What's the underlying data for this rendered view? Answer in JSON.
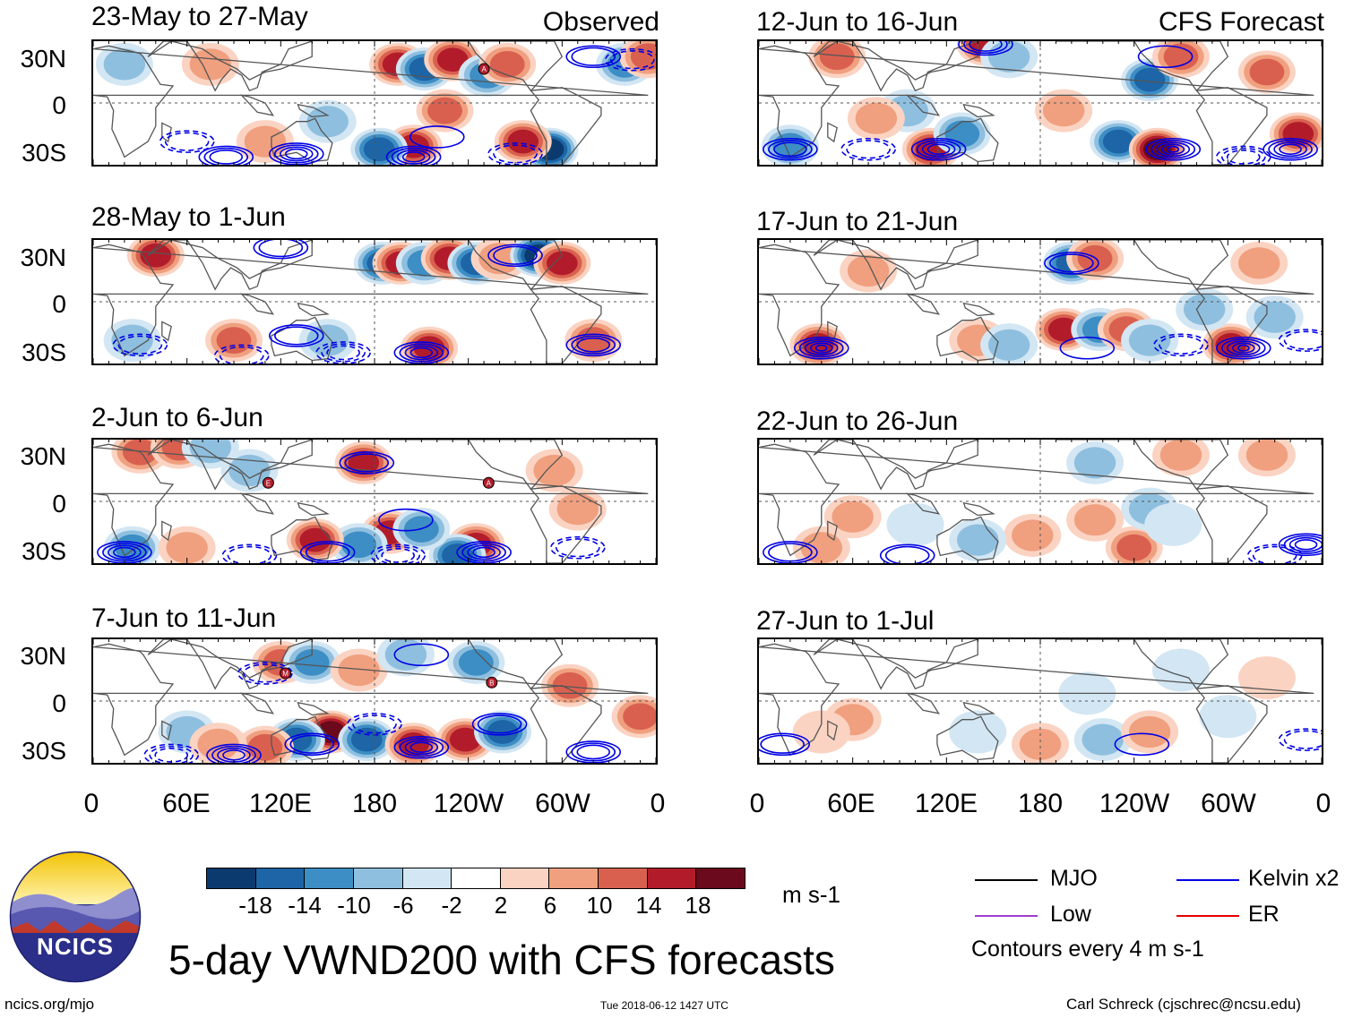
{
  "header": {
    "observed_label": "Observed",
    "forecast_label": "CFS Forecast"
  },
  "panels_left": [
    {
      "title": "23-May to 27-May"
    },
    {
      "title": "28-May to 1-Jun"
    },
    {
      "title": "2-Jun to 6-Jun"
    },
    {
      "title": "7-Jun to 11-Jun"
    }
  ],
  "panels_right": [
    {
      "title": "12-Jun to 16-Jun"
    },
    {
      "title": "17-Jun to 21-Jun"
    },
    {
      "title": "22-Jun to 26-Jun"
    },
    {
      "title": "27-Jun to 1-Jul"
    }
  ],
  "axes": {
    "lat_labels": [
      "30N",
      "0",
      "30S"
    ],
    "lon_labels": [
      "0",
      "60E",
      "120E",
      "180",
      "120W",
      "60W",
      "0"
    ]
  },
  "colorbar": {
    "ticks": [
      "-18",
      "-14",
      "-10",
      "-6",
      "-2",
      "2",
      "6",
      "10",
      "14",
      "18"
    ],
    "unit": "m s-1",
    "colors": [
      "#0b3b6e",
      "#1d65a6",
      "#3d8ec4",
      "#8fbfdf",
      "#d3e6f3",
      "#ffffff",
      "#fbd3c2",
      "#f0a07f",
      "#d9604f",
      "#b21c2a",
      "#6a0a1c"
    ]
  },
  "legend": {
    "items": [
      {
        "label": "MJO",
        "color": "#000000"
      },
      {
        "label": "Kelvin x2",
        "color": "#0000e6"
      },
      {
        "label": "Low",
        "color": "#a03cd0"
      },
      {
        "label": "ER",
        "color": "#e60000"
      }
    ],
    "contour_note": "Contours every 4 m s-1"
  },
  "footer": {
    "main_title": "5-day VWND200 with CFS forecasts",
    "logo_text": "NCICS",
    "site": "ncics.org/mjo",
    "timestamp": "Tue 2018-06-12 1427 UTC",
    "author": "Carl Schreck (cjschrec@ncsu.edu)"
  },
  "markers": [
    {
      "panel": 0,
      "label": "A",
      "lon": 250,
      "lat": 22
    },
    {
      "panel": 2,
      "label": "E",
      "lon": 112,
      "lat": 12
    },
    {
      "panel": 2,
      "label": "A",
      "lon": 253,
      "lat": 12
    },
    {
      "panel": 3,
      "label": "M",
      "lon": 123,
      "lat": 18
    },
    {
      "panel": 3,
      "label": "B",
      "lon": 255,
      "lat": 12
    }
  ],
  "anomalies": [
    [
      {
        "lon": 195,
        "lat": 25,
        "v": 16
      },
      {
        "lon": 212,
        "lat": 22,
        "v": -14
      },
      {
        "lon": 230,
        "lat": 28,
        "v": 17
      },
      {
        "lon": 252,
        "lat": 18,
        "v": -10
      },
      {
        "lon": 265,
        "lat": 25,
        "v": 12
      },
      {
        "lon": 205,
        "lat": -28,
        "v": 17
      },
      {
        "lon": 225,
        "lat": -5,
        "v": 10
      },
      {
        "lon": 292,
        "lat": -30,
        "v": -18
      },
      {
        "lon": 275,
        "lat": -25,
        "v": 14
      },
      {
        "lon": 183,
        "lat": -30,
        "v": -14
      },
      {
        "lon": 20,
        "lat": 25,
        "v": -8
      },
      {
        "lon": 75,
        "lat": 25,
        "v": 8
      },
      {
        "lon": 150,
        "lat": -12,
        "v": -7
      },
      {
        "lon": 340,
        "lat": 25,
        "v": -10
      },
      {
        "lon": 355,
        "lat": 30,
        "v": 10
      },
      {
        "lon": 110,
        "lat": -25,
        "v": 8
      }
    ],
    [
      {
        "lon": 185,
        "lat": 25,
        "v": -14
      },
      {
        "lon": 197,
        "lat": 25,
        "v": 16
      },
      {
        "lon": 212,
        "lat": 25,
        "v": -13
      },
      {
        "lon": 228,
        "lat": 28,
        "v": 16
      },
      {
        "lon": 245,
        "lat": 25,
        "v": -15
      },
      {
        "lon": 260,
        "lat": 28,
        "v": 8
      },
      {
        "lon": 285,
        "lat": 30,
        "v": -18
      },
      {
        "lon": 300,
        "lat": 25,
        "v": 17
      },
      {
        "lon": 40,
        "lat": 30,
        "v": 14
      },
      {
        "lon": 90,
        "lat": -25,
        "v": 12
      },
      {
        "lon": 215,
        "lat": -30,
        "v": 16
      },
      {
        "lon": 320,
        "lat": -25,
        "v": 10
      },
      {
        "lon": 25,
        "lat": -25,
        "v": -8
      },
      {
        "lon": 150,
        "lat": -25,
        "v": -9
      }
    ],
    [
      {
        "lon": 30,
        "lat": 32,
        "v": 12
      },
      {
        "lon": 55,
        "lat": 35,
        "v": 10
      },
      {
        "lon": 75,
        "lat": 35,
        "v": -8
      },
      {
        "lon": 173,
        "lat": 25,
        "v": 17
      },
      {
        "lon": 190,
        "lat": -20,
        "v": 16
      },
      {
        "lon": 170,
        "lat": -28,
        "v": -12
      },
      {
        "lon": 142,
        "lat": -25,
        "v": 15
      },
      {
        "lon": 245,
        "lat": -28,
        "v": 16
      },
      {
        "lon": 233,
        "lat": -35,
        "v": -16
      },
      {
        "lon": 210,
        "lat": -18,
        "v": -10
      },
      {
        "lon": 25,
        "lat": -30,
        "v": -10
      },
      {
        "lon": 60,
        "lat": -30,
        "v": 9
      },
      {
        "lon": 295,
        "lat": 20,
        "v": 9
      },
      {
        "lon": 310,
        "lat": -5,
        "v": 7
      },
      {
        "lon": 100,
        "lat": 20,
        "v": -7
      }
    ],
    [
      {
        "lon": 152,
        "lat": -20,
        "v": 19
      },
      {
        "lon": 130,
        "lat": -25,
        "v": -15
      },
      {
        "lon": 175,
        "lat": -25,
        "v": -14
      },
      {
        "lon": 205,
        "lat": -28,
        "v": 15
      },
      {
        "lon": 238,
        "lat": -25,
        "v": 16
      },
      {
        "lon": 262,
        "lat": -20,
        "v": -14
      },
      {
        "lon": 110,
        "lat": -30,
        "v": 12
      },
      {
        "lon": 120,
        "lat": 25,
        "v": 10
      },
      {
        "lon": 140,
        "lat": 25,
        "v": -12
      },
      {
        "lon": 170,
        "lat": 20,
        "v": 9
      },
      {
        "lon": 245,
        "lat": 25,
        "v": -12
      },
      {
        "lon": 305,
        "lat": 10,
        "v": 12
      },
      {
        "lon": 350,
        "lat": -10,
        "v": 10
      },
      {
        "lon": 60,
        "lat": -20,
        "v": -9
      },
      {
        "lon": 80,
        "lat": -28,
        "v": 8
      },
      {
        "lon": 200,
        "lat": 30,
        "v": -8
      }
    ],
    [
      {
        "lon": 50,
        "lat": 30,
        "v": 12
      },
      {
        "lon": 145,
        "lat": 38,
        "v": 14
      },
      {
        "lon": 160,
        "lat": 30,
        "v": -8
      },
      {
        "lon": 250,
        "lat": 15,
        "v": -14
      },
      {
        "lon": 270,
        "lat": 30,
        "v": 10
      },
      {
        "lon": 230,
        "lat": -25,
        "v": -16
      },
      {
        "lon": 255,
        "lat": -30,
        "v": 18
      },
      {
        "lon": 345,
        "lat": -20,
        "v": 15
      },
      {
        "lon": 110,
        "lat": -30,
        "v": 14
      },
      {
        "lon": 130,
        "lat": -20,
        "v": -10
      },
      {
        "lon": 20,
        "lat": -28,
        "v": -12
      },
      {
        "lon": 95,
        "lat": -5,
        "v": -7
      },
      {
        "lon": 195,
        "lat": -5,
        "v": 8
      },
      {
        "lon": 325,
        "lat": 20,
        "v": 10
      },
      {
        "lon": 75,
        "lat": -10,
        "v": 7
      }
    ],
    [
      {
        "lon": 200,
        "lat": 25,
        "v": -14
      },
      {
        "lon": 215,
        "lat": 28,
        "v": 10
      },
      {
        "lon": 195,
        "lat": -18,
        "v": 17
      },
      {
        "lon": 218,
        "lat": -18,
        "v": -12
      },
      {
        "lon": 235,
        "lat": -18,
        "v": 12
      },
      {
        "lon": 250,
        "lat": -25,
        "v": -8
      },
      {
        "lon": 38,
        "lat": -28,
        "v": 16
      },
      {
        "lon": 302,
        "lat": -28,
        "v": 14
      },
      {
        "lon": 140,
        "lat": -25,
        "v": 9
      },
      {
        "lon": 160,
        "lat": -28,
        "v": -8
      },
      {
        "lon": 330,
        "lat": -10,
        "v": -8
      },
      {
        "lon": 320,
        "lat": 25,
        "v": 9
      },
      {
        "lon": 70,
        "lat": 20,
        "v": 6
      },
      {
        "lon": 285,
        "lat": -5,
        "v": -7
      }
    ],
    [
      {
        "lon": 215,
        "lat": 25,
        "v": -6
      },
      {
        "lon": 270,
        "lat": 30,
        "v": 7
      },
      {
        "lon": 325,
        "lat": 30,
        "v": 9
      },
      {
        "lon": 175,
        "lat": -22,
        "v": 8
      },
      {
        "lon": 240,
        "lat": -30,
        "v": 10
      },
      {
        "lon": 250,
        "lat": -5,
        "v": -7
      },
      {
        "lon": 265,
        "lat": -15,
        "v": -5
      },
      {
        "lon": 100,
        "lat": -15,
        "v": -5
      },
      {
        "lon": 40,
        "lat": -30,
        "v": 8
      },
      {
        "lon": 140,
        "lat": -25,
        "v": -6
      },
      {
        "lon": 60,
        "lat": -10,
        "v": 6
      },
      {
        "lon": 215,
        "lat": -12,
        "v": 6
      }
    ],
    [
      {
        "lon": 60,
        "lat": -12,
        "v": 6
      },
      {
        "lon": 40,
        "lat": -20,
        "v": 5
      },
      {
        "lon": 180,
        "lat": -28,
        "v": 7
      },
      {
        "lon": 220,
        "lat": -25,
        "v": -6
      },
      {
        "lon": 250,
        "lat": -20,
        "v": 6
      },
      {
        "lon": 270,
        "lat": 20,
        "v": -5
      },
      {
        "lon": 325,
        "lat": 15,
        "v": 5
      },
      {
        "lon": 210,
        "lat": 5,
        "v": -4
      },
      {
        "lon": 140,
        "lat": -20,
        "v": -4
      },
      {
        "lon": 300,
        "lat": -10,
        "v": -5
      }
    ]
  ],
  "contours": [
    [
      {
        "lon": 130,
        "lat": -33,
        "solid": true,
        "n": 4
      },
      {
        "lon": 205,
        "lat": -35,
        "solid": true,
        "n": 4
      },
      {
        "lon": 85,
        "lat": -35,
        "solid": true,
        "n": 3
      },
      {
        "lon": 60,
        "lat": -25,
        "solid": false,
        "n": 2
      },
      {
        "lon": 320,
        "lat": 30,
        "solid": true,
        "n": 2
      },
      {
        "lon": 220,
        "lat": -22,
        "solid": true,
        "n": 1
      },
      {
        "lon": 345,
        "lat": 28,
        "solid": false,
        "n": 2
      },
      {
        "lon": 270,
        "lat": -33,
        "solid": false,
        "n": 2
      }
    ],
    [
      {
        "lon": 210,
        "lat": -33,
        "solid": true,
        "n": 4
      },
      {
        "lon": 160,
        "lat": -33,
        "solid": false,
        "n": 3
      },
      {
        "lon": 320,
        "lat": -28,
        "solid": true,
        "n": 3
      },
      {
        "lon": 130,
        "lat": -22,
        "solid": true,
        "n": 2
      },
      {
        "lon": 95,
        "lat": -35,
        "solid": false,
        "n": 2
      },
      {
        "lon": 120,
        "lat": 35,
        "solid": true,
        "n": 2
      },
      {
        "lon": 270,
        "lat": 30,
        "solid": true,
        "n": 2
      },
      {
        "lon": 30,
        "lat": -28,
        "solid": false,
        "n": 2
      }
    ],
    [
      {
        "lon": 250,
        "lat": -33,
        "solid": true,
        "n": 4
      },
      {
        "lon": 20,
        "lat": -33,
        "solid": true,
        "n": 4
      },
      {
        "lon": 150,
        "lat": -33,
        "solid": true,
        "n": 2
      },
      {
        "lon": 175,
        "lat": 25,
        "solid": true,
        "n": 2
      },
      {
        "lon": 200,
        "lat": -12,
        "solid": true,
        "n": 1
      },
      {
        "lon": 195,
        "lat": -35,
        "solid": false,
        "n": 3
      },
      {
        "lon": 100,
        "lat": -35,
        "solid": false,
        "n": 2
      },
      {
        "lon": 310,
        "lat": -30,
        "solid": false,
        "n": 2
      }
    ],
    [
      {
        "lon": 210,
        "lat": -30,
        "solid": true,
        "n": 4
      },
      {
        "lon": 90,
        "lat": -35,
        "solid": true,
        "n": 4
      },
      {
        "lon": 320,
        "lat": -33,
        "solid": true,
        "n": 3
      },
      {
        "lon": 140,
        "lat": -28,
        "solid": true,
        "n": 2
      },
      {
        "lon": 260,
        "lat": -15,
        "solid": true,
        "n": 2
      },
      {
        "lon": 180,
        "lat": -15,
        "solid": false,
        "n": 2
      },
      {
        "lon": 50,
        "lat": -35,
        "solid": false,
        "n": 3
      },
      {
        "lon": 210,
        "lat": 30,
        "solid": true,
        "n": 1
      },
      {
        "lon": 110,
        "lat": 18,
        "solid": false,
        "n": 2
      }
    ],
    [
      {
        "lon": 265,
        "lat": -30,
        "solid": true,
        "n": 5
      },
      {
        "lon": 115,
        "lat": -30,
        "solid": true,
        "n": 4
      },
      {
        "lon": 340,
        "lat": -30,
        "solid": true,
        "n": 4
      },
      {
        "lon": 20,
        "lat": -30,
        "solid": true,
        "n": 3
      },
      {
        "lon": 145,
        "lat": 38,
        "solid": true,
        "n": 3
      },
      {
        "lon": 310,
        "lat": -35,
        "solid": false,
        "n": 3
      },
      {
        "lon": 70,
        "lat": -30,
        "solid": false,
        "n": 2
      },
      {
        "lon": 260,
        "lat": 30,
        "solid": true,
        "n": 1
      }
    ],
    [
      {
        "lon": 40,
        "lat": -30,
        "solid": true,
        "n": 5
      },
      {
        "lon": 310,
        "lat": -30,
        "solid": true,
        "n": 5
      },
      {
        "lon": 200,
        "lat": 25,
        "solid": true,
        "n": 2
      },
      {
        "lon": 270,
        "lat": -28,
        "solid": false,
        "n": 2
      },
      {
        "lon": 350,
        "lat": -25,
        "solid": false,
        "n": 2
      },
      {
        "lon": 210,
        "lat": -30,
        "solid": true,
        "n": 1
      }
    ],
    [
      {
        "lon": 350,
        "lat": -28,
        "solid": true,
        "n": 4
      },
      {
        "lon": 20,
        "lat": -33,
        "solid": true,
        "n": 2
      },
      {
        "lon": 95,
        "lat": -35,
        "solid": true,
        "n": 2
      },
      {
        "lon": 330,
        "lat": -35,
        "solid": false,
        "n": 2
      }
    ],
    [
      {
        "lon": 15,
        "lat": -28,
        "solid": true,
        "n": 2
      },
      {
        "lon": 245,
        "lat": -28,
        "solid": true,
        "n": 1
      },
      {
        "lon": 350,
        "lat": -25,
        "solid": false,
        "n": 2
      }
    ]
  ]
}
